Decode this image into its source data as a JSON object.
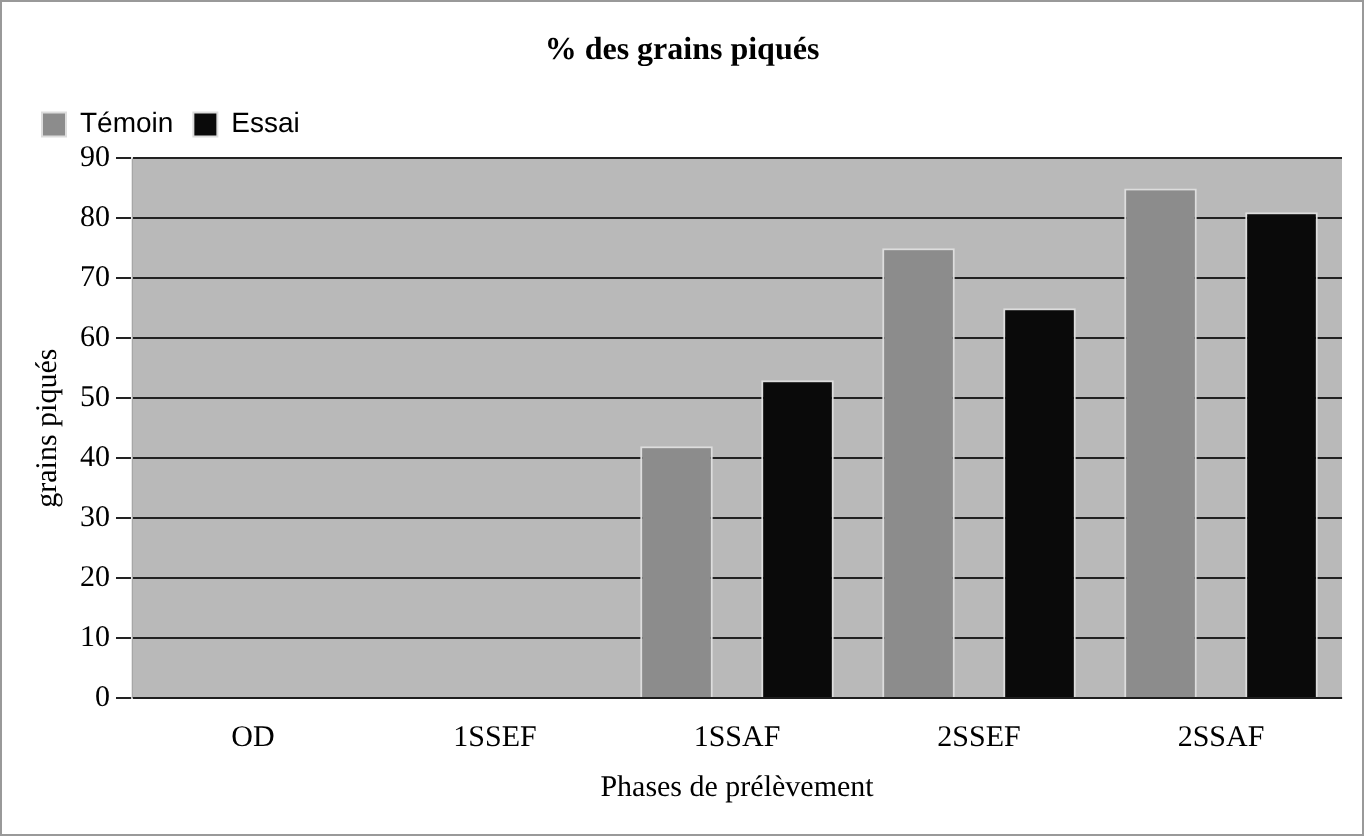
{
  "chart_data": {
    "type": "bar",
    "title": "% des grains piqués",
    "xlabel": "Phases de prélèvement",
    "ylabel": "grains piqués",
    "categories": [
      "OD",
      "1SSEF",
      "1SSAF",
      "2SSEF",
      "2SSAF"
    ],
    "series": [
      {
        "name": "Témoin",
        "color": "#8c8c8c",
        "values": [
          0,
          0,
          42,
          75,
          85
        ]
      },
      {
        "name": "Essai",
        "color": "#0a0a0a",
        "values": [
          0,
          0,
          53,
          65,
          81
        ]
      }
    ],
    "ylim": [
      0,
      90
    ],
    "yticks": [
      0,
      10,
      20,
      30,
      40,
      50,
      60,
      70,
      80,
      90
    ],
    "grid": "y",
    "legend": "top left"
  }
}
